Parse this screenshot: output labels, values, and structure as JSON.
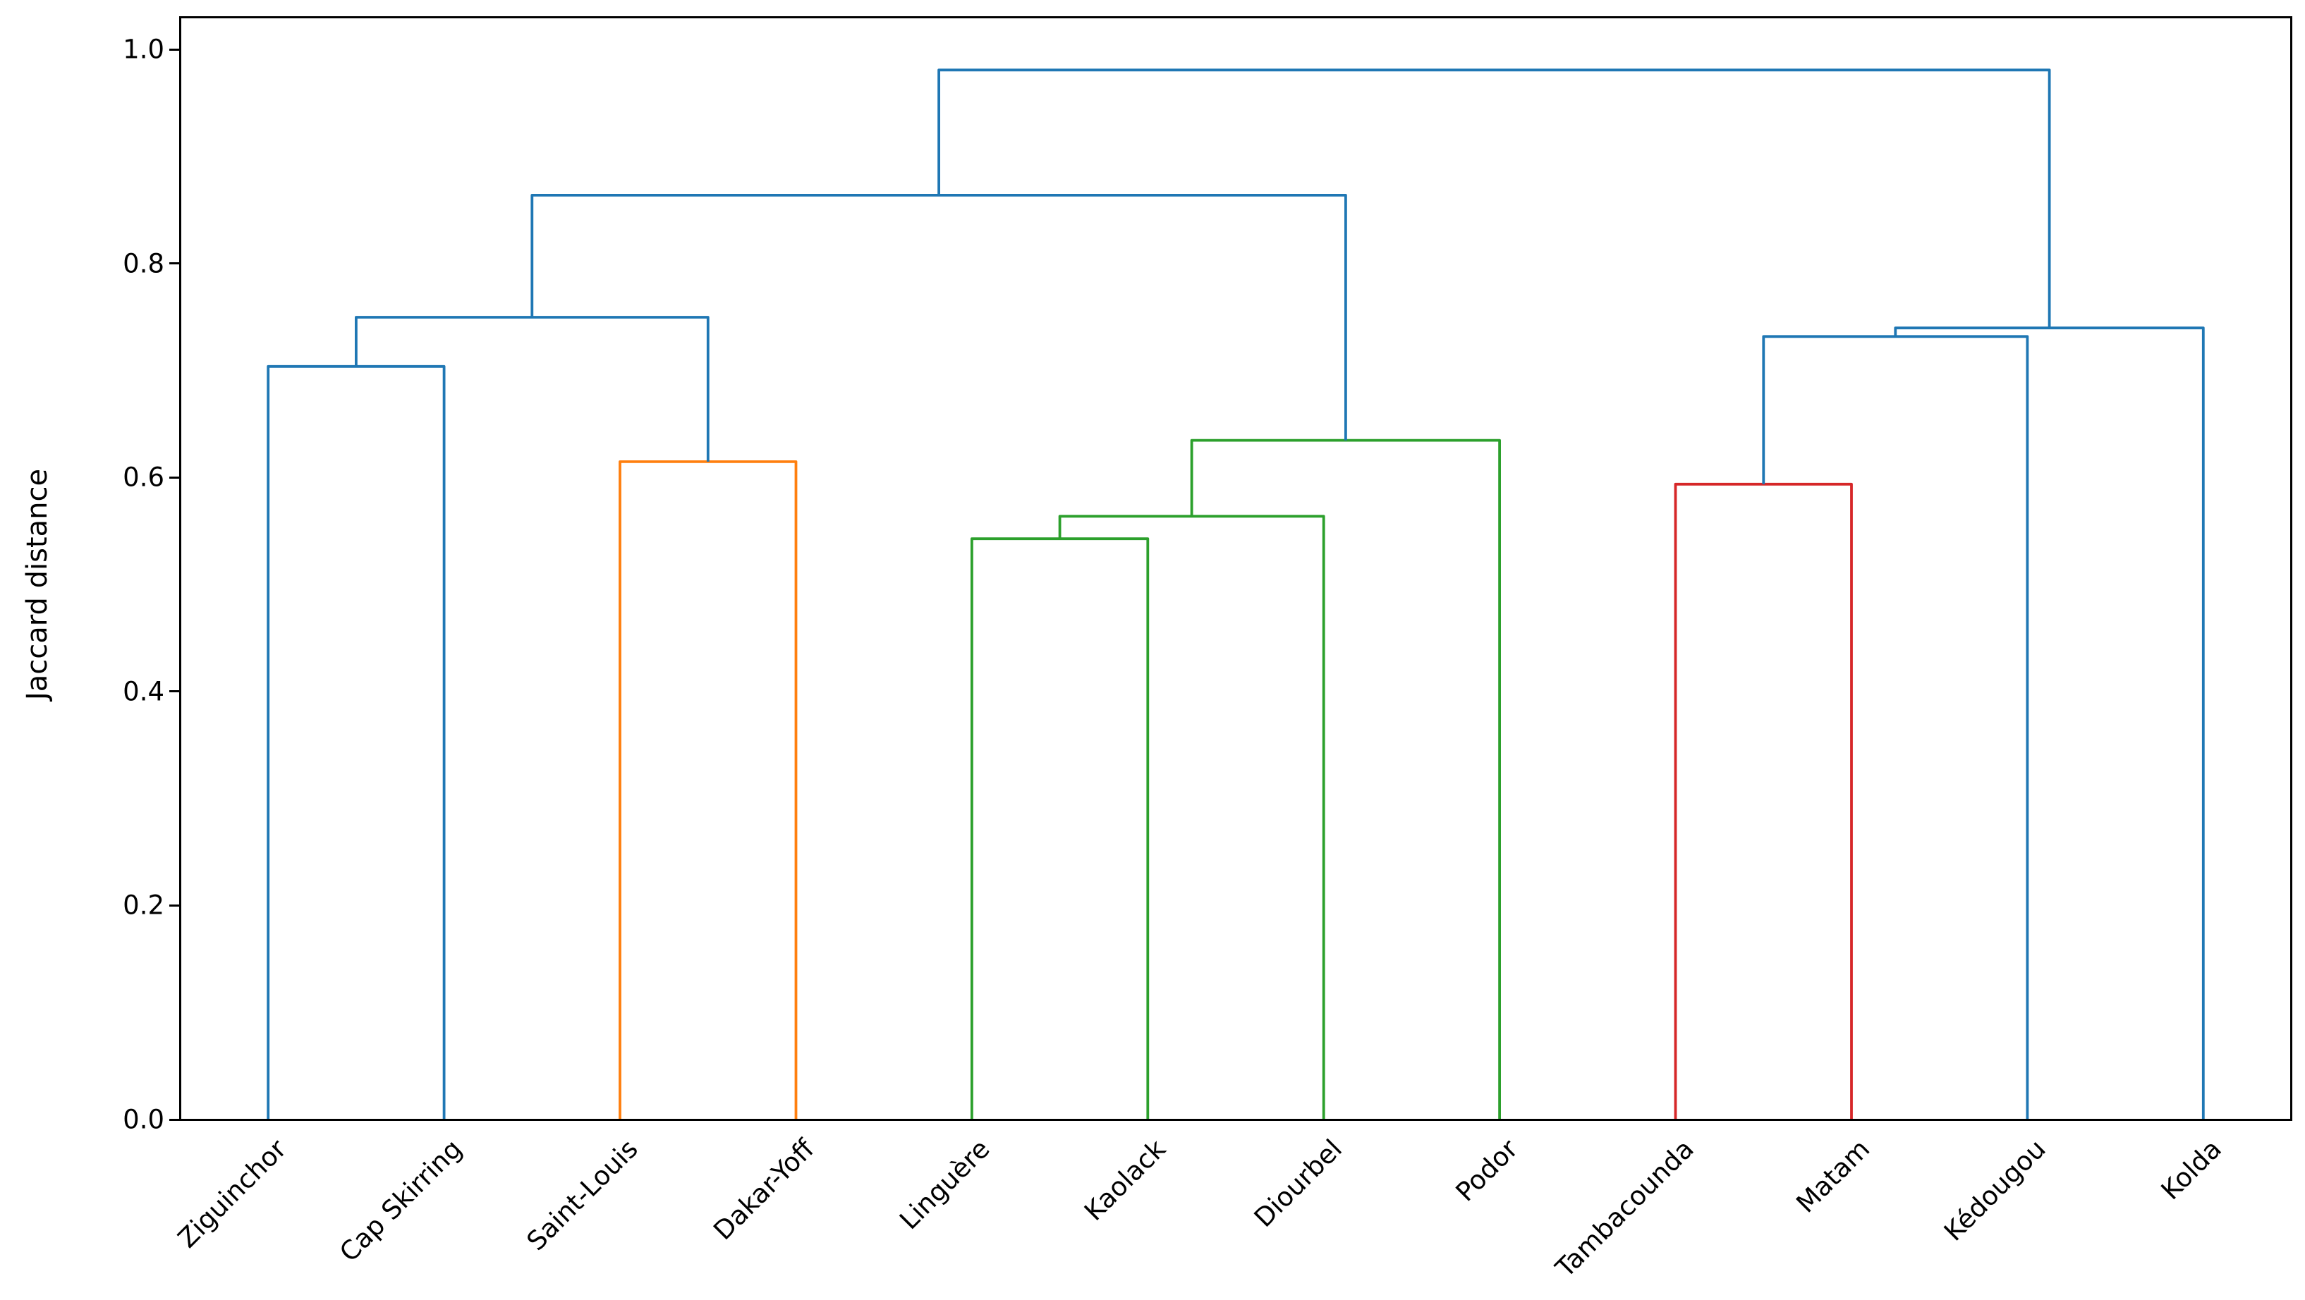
{
  "figure": {
    "background": "#ffffff"
  },
  "chart_data": {
    "type": "dendrogram",
    "ylabel": "Jaccard distance",
    "xlabel": "",
    "title": "",
    "grid": false,
    "legend": null,
    "xlim": [
      0,
      120
    ],
    "ylim": [
      0,
      1.03
    ],
    "yticks": [
      1.0,
      0.8,
      0.6,
      0.4,
      0.2,
      0.0
    ],
    "ytick_labels": [
      "1.0",
      "0.8",
      "0.6",
      "0.4",
      "0.2",
      "0.0"
    ],
    "leaves": [
      "Ziguinchor",
      "Cap Skirring",
      "Saint-Louis",
      "Dakar-Yoff",
      "Linguère",
      "Kaolack",
      "Diourbel",
      "Podor",
      "Tambacounda",
      "Matam",
      "Kédougou",
      "Kolda"
    ],
    "leaf_x": [
      5,
      15,
      25,
      35,
      45,
      55,
      65,
      75,
      85,
      95,
      105,
      115
    ],
    "leaf_cluster_colors": [
      "blue",
      "blue",
      "orange",
      "orange",
      "green",
      "green",
      "green",
      "green",
      "red",
      "red",
      "blue",
      "blue"
    ],
    "merges": [
      {
        "name": "Ziguinchor + Cap Skirring",
        "x1": 5,
        "y1": 0,
        "x2": 15,
        "y2": 0,
        "height": 0.704,
        "color": "blue"
      },
      {
        "name": "Saint-Louis + Dakar-Yoff",
        "x1": 25,
        "y1": 0,
        "x2": 35,
        "y2": 0,
        "height": 0.615,
        "color": "orange"
      },
      {
        "name": "(Ziguinchor,Cap Skirring) + (Saint-Louis,Dakar-Yoff)",
        "x1": 10,
        "y1": 0.704,
        "x2": 30,
        "y2": 0.615,
        "height": 0.75,
        "color": "blue"
      },
      {
        "name": "Linguère + Kaolack",
        "x1": 45,
        "y1": 0,
        "x2": 55,
        "y2": 0,
        "height": 0.543,
        "color": "green"
      },
      {
        "name": "(Linguère,Kaolack) + Diourbel",
        "x1": 50,
        "y1": 0.543,
        "x2": 65,
        "y2": 0,
        "height": 0.564,
        "color": "green"
      },
      {
        "name": "(Linguère,Kaolack,Diourbel) + Podor",
        "x1": 57.5,
        "y1": 0.564,
        "x2": 75,
        "y2": 0,
        "height": 0.635,
        "color": "green"
      },
      {
        "name": "west cluster + central green cluster",
        "x1": 20,
        "y1": 0.75,
        "x2": 66.25,
        "y2": 0.635,
        "height": 0.864,
        "color": "blue"
      },
      {
        "name": "Tambacounda + Matam",
        "x1": 85,
        "y1": 0,
        "x2": 95,
        "y2": 0,
        "height": 0.594,
        "color": "red"
      },
      {
        "name": "(Tambacounda,Matam) + Kédougou",
        "x1": 90,
        "y1": 0.594,
        "x2": 105,
        "y2": 0,
        "height": 0.732,
        "color": "blue"
      },
      {
        "name": "(Tambacounda,Matam,Kédougou) + Kolda",
        "x1": 97.5,
        "y1": 0.732,
        "x2": 115,
        "y2": 0,
        "height": 0.74,
        "color": "blue"
      },
      {
        "name": "root",
        "x1": 43.125,
        "y1": 0.864,
        "x2": 106.25,
        "y2": 0.74,
        "height": 0.981,
        "color": "blue"
      }
    ],
    "colors": {
      "blue": "#1f77b4",
      "orange": "#ff7f0e",
      "green": "#2ca02c",
      "red": "#d62728",
      "spine": "#000000",
      "text": "#000000"
    },
    "line_width": 3.8
  }
}
